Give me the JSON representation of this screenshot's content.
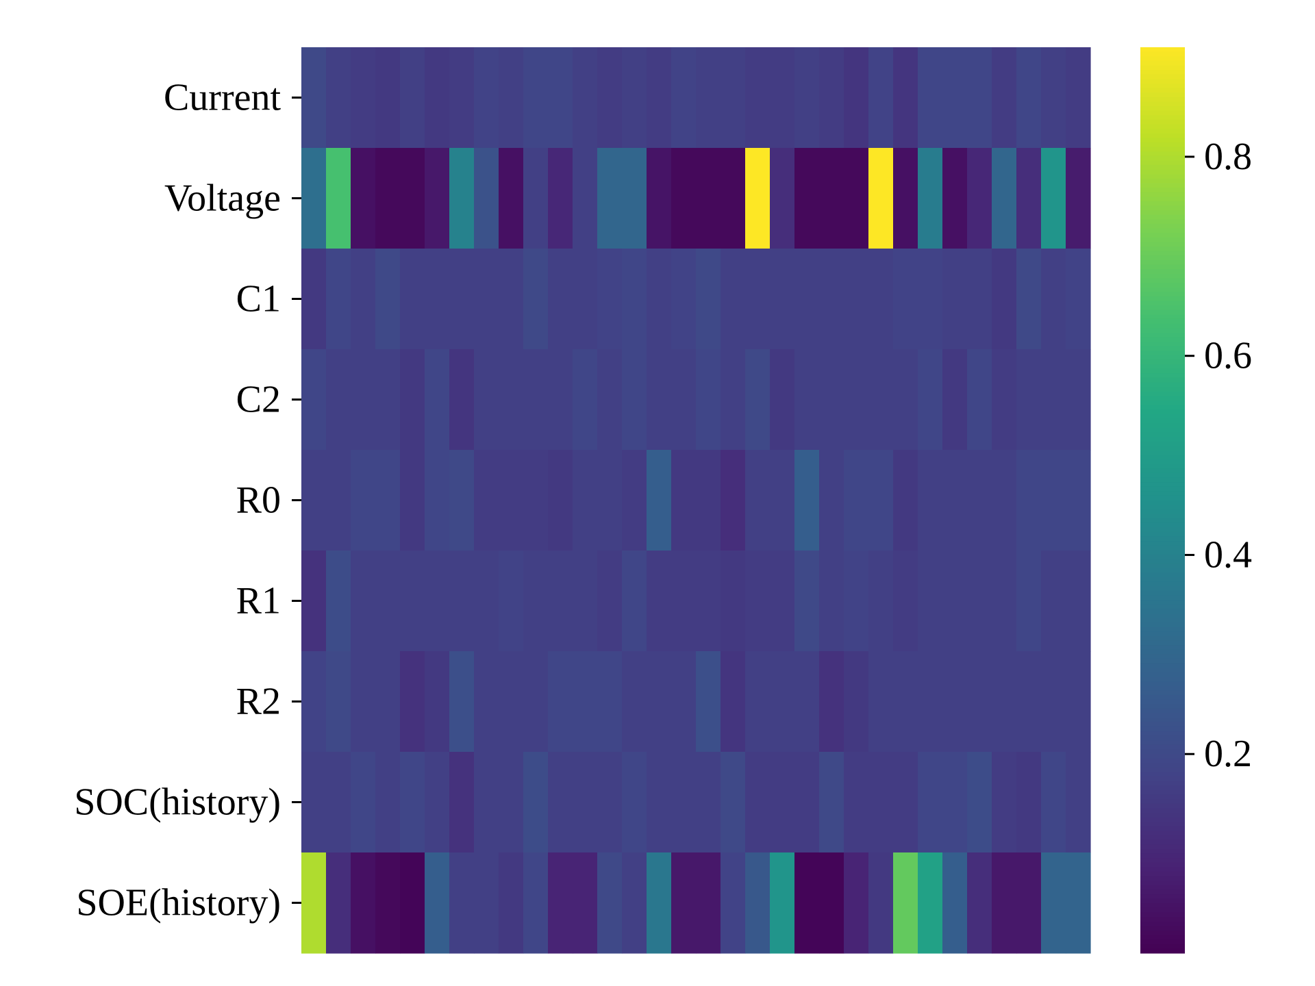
{
  "chart_data": {
    "type": "heatmap",
    "title": "",
    "xlabel": "",
    "ylabel": "",
    "colormap": "viridis",
    "row_labels": [
      "Current",
      "Voltage",
      "C1",
      "C2",
      "R0",
      "R1",
      "R2",
      "SOC(history)",
      "SOE(history)"
    ],
    "color_range": [
      0.0,
      0.91
    ],
    "colorbar_ticks": [
      {
        "value": 0.2,
        "label": "0.2"
      },
      {
        "value": 0.4,
        "label": "0.4"
      },
      {
        "value": 0.6,
        "label": "0.6"
      },
      {
        "value": 0.8,
        "label": "0.8"
      }
    ],
    "values": [
      [
        0.2,
        0.17,
        0.16,
        0.15,
        0.17,
        0.15,
        0.16,
        0.18,
        0.17,
        0.19,
        0.19,
        0.17,
        0.16,
        0.17,
        0.16,
        0.18,
        0.17,
        0.17,
        0.16,
        0.16,
        0.17,
        0.16,
        0.14,
        0.18,
        0.14,
        0.19,
        0.19,
        0.19,
        0.16,
        0.19,
        0.17,
        0.16
      ],
      [
        0.33,
        0.64,
        0.04,
        0.02,
        0.02,
        0.06,
        0.4,
        0.23,
        0.04,
        0.17,
        0.1,
        0.17,
        0.3,
        0.3,
        0.05,
        0.02,
        0.02,
        0.02,
        0.91,
        0.12,
        0.02,
        0.02,
        0.02,
        0.91,
        0.04,
        0.38,
        0.04,
        0.1,
        0.3,
        0.12,
        0.47,
        0.07
      ],
      [
        0.15,
        0.19,
        0.17,
        0.2,
        0.17,
        0.17,
        0.17,
        0.17,
        0.17,
        0.2,
        0.17,
        0.17,
        0.18,
        0.19,
        0.17,
        0.18,
        0.2,
        0.17,
        0.17,
        0.17,
        0.17,
        0.17,
        0.17,
        0.17,
        0.18,
        0.18,
        0.17,
        0.17,
        0.15,
        0.2,
        0.17,
        0.18
      ],
      [
        0.19,
        0.17,
        0.17,
        0.17,
        0.15,
        0.19,
        0.14,
        0.17,
        0.17,
        0.17,
        0.17,
        0.19,
        0.17,
        0.19,
        0.17,
        0.17,
        0.19,
        0.17,
        0.2,
        0.15,
        0.17,
        0.17,
        0.17,
        0.17,
        0.17,
        0.19,
        0.15,
        0.19,
        0.16,
        0.17,
        0.17,
        0.17
      ],
      [
        0.17,
        0.17,
        0.19,
        0.19,
        0.15,
        0.19,
        0.2,
        0.16,
        0.16,
        0.16,
        0.15,
        0.17,
        0.17,
        0.16,
        0.27,
        0.15,
        0.15,
        0.12,
        0.17,
        0.17,
        0.27,
        0.17,
        0.19,
        0.19,
        0.15,
        0.17,
        0.17,
        0.17,
        0.17,
        0.19,
        0.19,
        0.19
      ],
      [
        0.13,
        0.21,
        0.17,
        0.17,
        0.17,
        0.17,
        0.17,
        0.17,
        0.18,
        0.17,
        0.17,
        0.17,
        0.16,
        0.19,
        0.16,
        0.16,
        0.16,
        0.15,
        0.16,
        0.16,
        0.2,
        0.17,
        0.18,
        0.17,
        0.16,
        0.17,
        0.17,
        0.17,
        0.17,
        0.19,
        0.17,
        0.17
      ],
      [
        0.18,
        0.2,
        0.17,
        0.17,
        0.13,
        0.15,
        0.22,
        0.17,
        0.17,
        0.17,
        0.19,
        0.19,
        0.19,
        0.17,
        0.17,
        0.17,
        0.22,
        0.14,
        0.17,
        0.17,
        0.17,
        0.13,
        0.15,
        0.17,
        0.17,
        0.17,
        0.17,
        0.17,
        0.17,
        0.17,
        0.17,
        0.17
      ],
      [
        0.17,
        0.17,
        0.19,
        0.17,
        0.19,
        0.17,
        0.13,
        0.17,
        0.17,
        0.21,
        0.17,
        0.17,
        0.17,
        0.19,
        0.17,
        0.17,
        0.17,
        0.2,
        0.16,
        0.16,
        0.16,
        0.2,
        0.16,
        0.16,
        0.16,
        0.19,
        0.19,
        0.21,
        0.16,
        0.15,
        0.19,
        0.17
      ],
      [
        0.8,
        0.12,
        0.04,
        0.02,
        0.01,
        0.27,
        0.17,
        0.17,
        0.15,
        0.19,
        0.09,
        0.09,
        0.2,
        0.17,
        0.36,
        0.06,
        0.06,
        0.18,
        0.25,
        0.47,
        0.01,
        0.01,
        0.09,
        0.15,
        0.69,
        0.52,
        0.27,
        0.12,
        0.06,
        0.06,
        0.29,
        0.29
      ]
    ]
  }
}
